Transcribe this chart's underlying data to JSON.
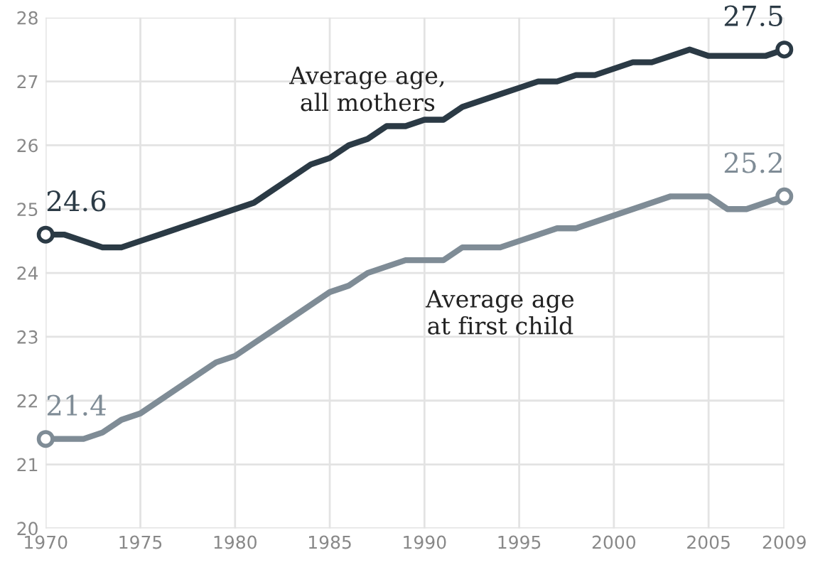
{
  "chart_data": {
    "type": "line",
    "x": [
      1970,
      1971,
      1972,
      1973,
      1974,
      1975,
      1976,
      1977,
      1978,
      1979,
      1980,
      1981,
      1982,
      1983,
      1984,
      1985,
      1986,
      1987,
      1988,
      1989,
      1990,
      1991,
      1992,
      1993,
      1994,
      1995,
      1996,
      1997,
      1998,
      1999,
      2000,
      2001,
      2002,
      2003,
      2004,
      2005,
      2006,
      2007,
      2008,
      2009
    ],
    "series": [
      {
        "name": "Average age,\nall mothers",
        "color": "#2b3a45",
        "values": [
          24.6,
          24.6,
          24.5,
          24.4,
          24.4,
          24.5,
          24.6,
          24.7,
          24.8,
          24.9,
          25.0,
          25.1,
          25.3,
          25.5,
          25.7,
          25.8,
          26.0,
          26.1,
          26.3,
          26.3,
          26.4,
          26.4,
          26.6,
          26.7,
          26.8,
          26.9,
          27.0,
          27.0,
          27.1,
          27.1,
          27.2,
          27.3,
          27.3,
          27.4,
          27.5,
          27.4,
          27.4,
          27.4,
          27.4,
          27.5
        ],
        "value_labels": [
          "24.6",
          null,
          null,
          null,
          null,
          null,
          null,
          null,
          null,
          null,
          null,
          null,
          null,
          null,
          null,
          null,
          null,
          null,
          null,
          null,
          null,
          null,
          null,
          null,
          null,
          null,
          null,
          null,
          null,
          null,
          null,
          null,
          null,
          null,
          null,
          null,
          null,
          null,
          null,
          "27.5"
        ]
      },
      {
        "name": "Average age\nat first child",
        "color": "#7f8c96",
        "values": [
          21.4,
          21.4,
          21.4,
          21.5,
          21.7,
          21.8,
          22.0,
          22.2,
          22.4,
          22.6,
          22.7,
          22.9,
          23.1,
          23.3,
          23.5,
          23.7,
          23.8,
          24.0,
          24.1,
          24.2,
          24.2,
          24.2,
          24.4,
          24.4,
          24.4,
          24.5,
          24.6,
          24.7,
          24.7,
          24.8,
          24.9,
          25.0,
          25.1,
          25.2,
          25.2,
          25.2,
          25.0,
          25.0,
          25.1,
          25.2
        ],
        "value_labels": [
          "21.4",
          null,
          null,
          null,
          null,
          null,
          null,
          null,
          null,
          null,
          null,
          null,
          null,
          null,
          null,
          null,
          null,
          null,
          null,
          null,
          null,
          null,
          null,
          null,
          null,
          null,
          null,
          null,
          null,
          null,
          null,
          null,
          null,
          null,
          null,
          null,
          null,
          null,
          null,
          "25.2"
        ]
      }
    ],
    "xlim": [
      1970,
      2009
    ],
    "xticks": [
      1970,
      1975,
      1980,
      1985,
      1990,
      1995,
      2000,
      2005,
      2009
    ],
    "ylim": [
      20,
      28
    ],
    "yticks": [
      20,
      21,
      22,
      23,
      24,
      25,
      26,
      27,
      28
    ],
    "grid": true,
    "legend": false,
    "line_style": "solid"
  }
}
